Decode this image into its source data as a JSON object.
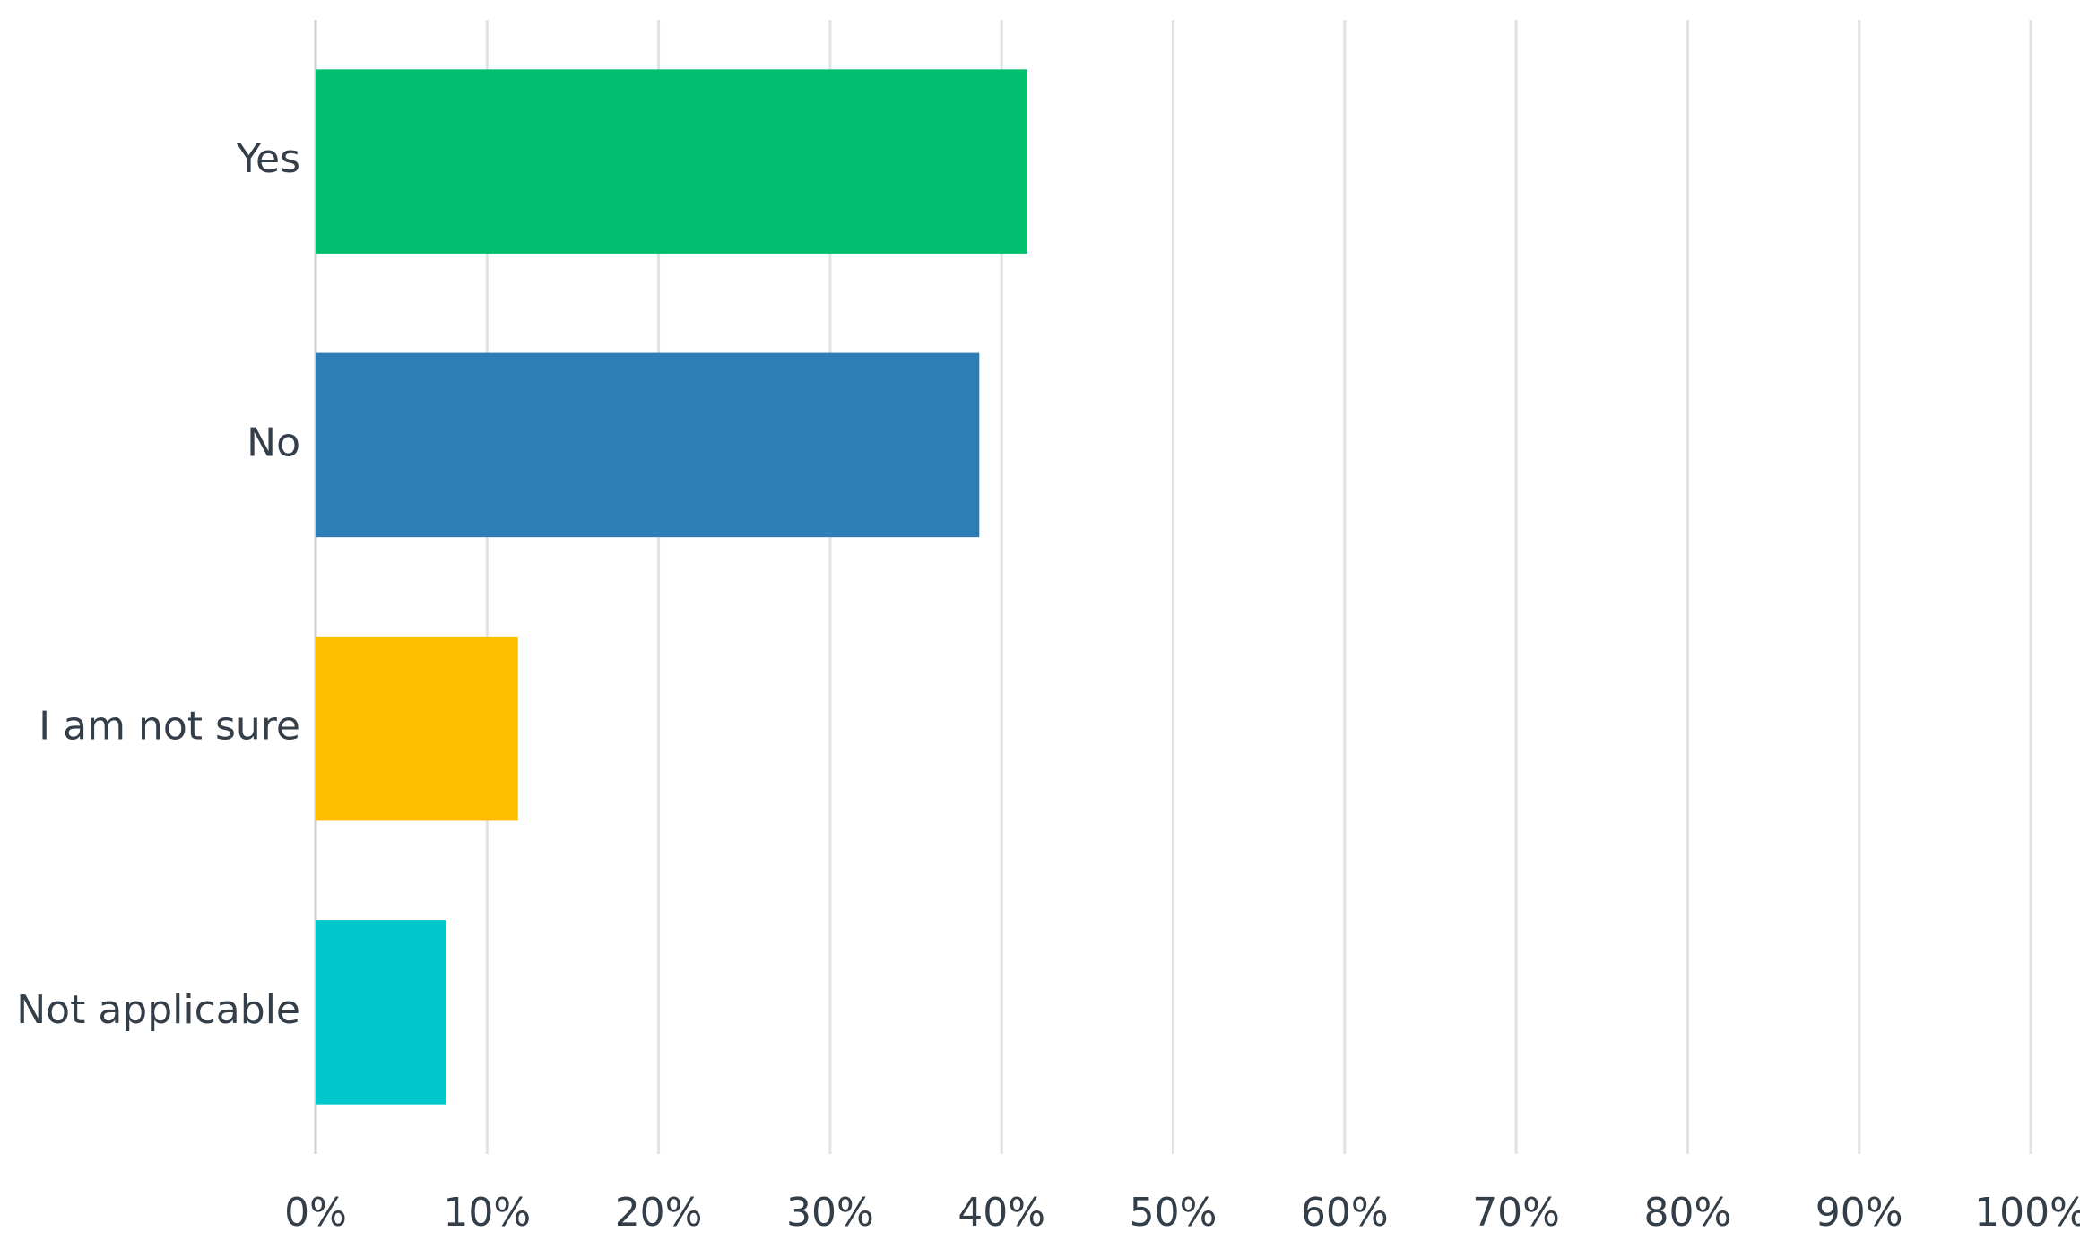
{
  "chart_data": {
    "type": "bar",
    "orientation": "horizontal",
    "categories": [
      "Yes",
      "No",
      "I am not sure",
      "Not applicable"
    ],
    "values": [
      41.5,
      38.7,
      11.8,
      7.6
    ],
    "colors": [
      "#00bf6f",
      "#2e7eb6",
      "#fdbe00",
      "#00c8cc"
    ],
    "xlim": [
      0,
      100
    ],
    "xticks": [
      {
        "value": 0,
        "label": "0%"
      },
      {
        "value": 10,
        "label": "10%"
      },
      {
        "value": 20,
        "label": "20%"
      },
      {
        "value": 30,
        "label": "30%"
      },
      {
        "value": 40,
        "label": "40%"
      },
      {
        "value": 50,
        "label": "50%"
      },
      {
        "value": 60,
        "label": "60%"
      },
      {
        "value": 70,
        "label": "70%"
      },
      {
        "value": 80,
        "label": "80%"
      },
      {
        "value": 90,
        "label": "90%"
      },
      {
        "value": 100,
        "label": "100%"
      }
    ],
    "grid": true
  }
}
